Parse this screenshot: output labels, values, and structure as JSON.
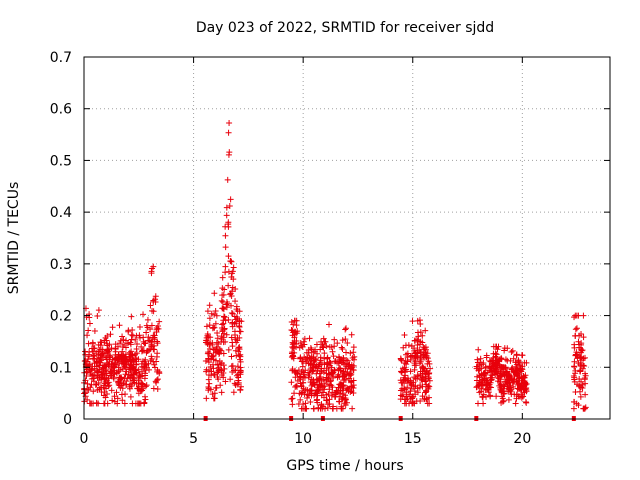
{
  "chart_data": {
    "type": "scatter",
    "title": "Day 023 of 2022, SRMTID for receiver sjdd",
    "xlabel": "GPS time / hours",
    "ylabel": "SRMTID / TECUs",
    "xlim": [
      0,
      24
    ],
    "ylim": [
      0,
      0.7
    ],
    "x_ticks": [
      "0",
      "5",
      "10",
      "15",
      "20"
    ],
    "y_ticks": [
      "0",
      "0.1",
      "0.2",
      "0.3",
      "0.4",
      "0.5",
      "0.6",
      "0.7"
    ],
    "grid": true,
    "marker": "+",
    "color": "#e8000b",
    "gap_markers_hours": [
      5.55,
      9.45,
      10.9,
      14.45,
      17.9,
      22.35
    ],
    "clusters": [
      {
        "x_start": 0.0,
        "x_end": 3.45,
        "y_min": 0.03,
        "y_max": 0.2,
        "y_center": 0.1,
        "peak_hours": 3.1,
        "peak_value": 0.31
      },
      {
        "x_start": 5.55,
        "x_end": 7.2,
        "y_min": 0.04,
        "y_max": 0.25,
        "y_center": 0.13,
        "peak_hours": 6.6,
        "peak_value": 0.61
      },
      {
        "x_start": 9.45,
        "x_end": 12.35,
        "y_min": 0.02,
        "y_max": 0.19,
        "y_center": 0.08,
        "peak_hours": 9.6,
        "peak_value": 0.19
      },
      {
        "x_start": 14.45,
        "x_end": 15.8,
        "y_min": 0.03,
        "y_max": 0.2,
        "y_center": 0.08,
        "peak_hours": 15.3,
        "peak_value": 0.2
      },
      {
        "x_start": 17.9,
        "x_end": 20.2,
        "y_min": 0.03,
        "y_max": 0.14,
        "y_center": 0.08,
        "peak_hours": 18.7,
        "peak_value": 0.14
      },
      {
        "x_start": 22.35,
        "x_end": 22.9,
        "y_min": 0.02,
        "y_max": 0.2,
        "y_center": 0.07,
        "peak_hours": 22.5,
        "peak_value": 0.2
      }
    ]
  }
}
